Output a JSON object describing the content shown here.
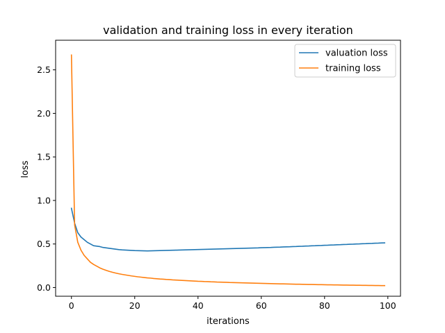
{
  "chart_data": {
    "type": "line",
    "title": "validation and training loss in every iteration",
    "xlabel": "iterations",
    "ylabel": "loss",
    "xlim": [
      -5,
      104
    ],
    "ylim": [
      -0.1,
      2.84
    ],
    "xticks": [
      0,
      20,
      40,
      60,
      80,
      100
    ],
    "yticks": [
      0.0,
      0.5,
      1.0,
      1.5,
      2.0,
      2.5
    ],
    "xtick_labels": [
      "0",
      "20",
      "40",
      "60",
      "80",
      "100"
    ],
    "ytick_labels": [
      "0.0",
      "0.5",
      "1.0",
      "1.5",
      "2.0",
      "2.5"
    ],
    "grid": false,
    "legend_position": "top-right",
    "series": [
      {
        "name": "valuation loss",
        "color": "#1f77b4",
        "x": [
          0,
          1,
          2,
          3,
          4,
          5,
          6,
          7,
          8,
          9,
          10,
          11,
          12,
          13,
          14,
          15,
          16,
          17,
          18,
          19,
          20,
          21,
          22,
          23,
          24,
          25,
          26,
          27,
          28,
          29,
          30,
          31,
          32,
          33,
          34,
          35,
          36,
          37,
          38,
          39,
          40,
          41,
          42,
          43,
          44,
          45,
          46,
          47,
          48,
          49,
          50,
          51,
          52,
          53,
          54,
          55,
          56,
          57,
          58,
          59,
          60,
          61,
          62,
          63,
          64,
          65,
          66,
          67,
          68,
          69,
          70,
          71,
          72,
          73,
          74,
          75,
          76,
          77,
          78,
          79,
          80,
          81,
          82,
          83,
          84,
          85,
          86,
          87,
          88,
          89,
          90,
          91,
          92,
          93,
          94,
          95,
          96,
          97,
          98,
          99
        ],
        "y": [
          0.91,
          0.74,
          0.63,
          0.58,
          0.55,
          0.52,
          0.5,
          0.48,
          0.475,
          0.47,
          0.46,
          0.455,
          0.45,
          0.445,
          0.44,
          0.435,
          0.432,
          0.43,
          0.428,
          0.426,
          0.424,
          0.423,
          0.422,
          0.421,
          0.42,
          0.421,
          0.422,
          0.423,
          0.424,
          0.425,
          0.426,
          0.427,
          0.428,
          0.429,
          0.43,
          0.431,
          0.432,
          0.433,
          0.434,
          0.435,
          0.436,
          0.437,
          0.438,
          0.439,
          0.44,
          0.441,
          0.442,
          0.443,
          0.444,
          0.445,
          0.446,
          0.447,
          0.448,
          0.449,
          0.45,
          0.451,
          0.452,
          0.453,
          0.454,
          0.455,
          0.457,
          0.458,
          0.459,
          0.46,
          0.462,
          0.463,
          0.464,
          0.466,
          0.467,
          0.468,
          0.47,
          0.471,
          0.473,
          0.474,
          0.476,
          0.477,
          0.479,
          0.48,
          0.482,
          0.483,
          0.485,
          0.486,
          0.488,
          0.489,
          0.491,
          0.492,
          0.494,
          0.495,
          0.497,
          0.498,
          0.5,
          0.501,
          0.503,
          0.504,
          0.506,
          0.507,
          0.509,
          0.51,
          0.512,
          0.513
        ]
      },
      {
        "name": "training loss",
        "color": "#ff7f0e",
        "x": [
          0,
          1,
          2,
          3,
          4,
          5,
          6,
          7,
          8,
          9,
          10,
          11,
          12,
          13,
          14,
          15,
          16,
          17,
          18,
          19,
          20,
          21,
          22,
          23,
          24,
          25,
          26,
          27,
          28,
          29,
          30,
          31,
          32,
          33,
          34,
          35,
          36,
          37,
          38,
          39,
          40,
          41,
          42,
          43,
          44,
          45,
          46,
          47,
          48,
          49,
          50,
          51,
          52,
          53,
          54,
          55,
          56,
          57,
          58,
          59,
          60,
          61,
          62,
          63,
          64,
          65,
          66,
          67,
          68,
          69,
          70,
          71,
          72,
          73,
          74,
          75,
          76,
          77,
          78,
          79,
          80,
          81,
          82,
          83,
          84,
          85,
          86,
          87,
          88,
          89,
          90,
          91,
          92,
          93,
          94,
          95,
          96,
          97,
          98,
          99
        ],
        "y": [
          2.67,
          0.72,
          0.52,
          0.43,
          0.37,
          0.33,
          0.29,
          0.265,
          0.245,
          0.225,
          0.21,
          0.197,
          0.185,
          0.175,
          0.166,
          0.158,
          0.151,
          0.145,
          0.139,
          0.133,
          0.128,
          0.123,
          0.119,
          0.115,
          0.111,
          0.108,
          0.104,
          0.101,
          0.098,
          0.096,
          0.093,
          0.091,
          0.088,
          0.086,
          0.084,
          0.082,
          0.08,
          0.078,
          0.076,
          0.074,
          0.072,
          0.071,
          0.069,
          0.068,
          0.066,
          0.065,
          0.063,
          0.062,
          0.061,
          0.06,
          0.058,
          0.057,
          0.056,
          0.055,
          0.054,
          0.053,
          0.052,
          0.051,
          0.05,
          0.049,
          0.048,
          0.047,
          0.046,
          0.045,
          0.044,
          0.043,
          0.042,
          0.042,
          0.041,
          0.04,
          0.039,
          0.038,
          0.038,
          0.037,
          0.036,
          0.035,
          0.035,
          0.034,
          0.033,
          0.033,
          0.032,
          0.031,
          0.031,
          0.03,
          0.03,
          0.029,
          0.028,
          0.028,
          0.027,
          0.027,
          0.026,
          0.026,
          0.025,
          0.025,
          0.024,
          0.024,
          0.023,
          0.023,
          0.022,
          0.022
        ]
      }
    ]
  }
}
